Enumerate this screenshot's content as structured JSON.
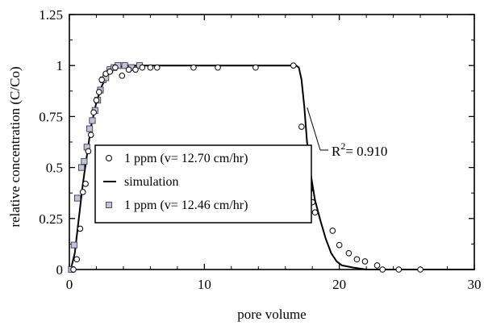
{
  "chart_data": {
    "type": "scatter",
    "title": "",
    "xlabel": "pore volume",
    "ylabel": "relative concentration (C/Co)",
    "xlim": [
      0,
      30
    ],
    "ylim": [
      0,
      1.25
    ],
    "x_ticks": [
      0,
      10,
      20,
      30
    ],
    "x_tick_labels": [
      "0",
      "10",
      "20",
      "30"
    ],
    "y_ticks": [
      0,
      0.25,
      0.5,
      0.75,
      1,
      1.25
    ],
    "y_tick_labels": [
      "0",
      "0.25",
      "0.5",
      "0.75",
      "1",
      "1.25"
    ],
    "grid": false,
    "legend_position": "center-left",
    "series": [
      {
        "name": "1 ppm (v= 12.70 cm/hr)",
        "marker": "open-circle",
        "color": "#000000",
        "x": [
          0.3,
          0.55,
          0.8,
          1.0,
          1.2,
          1.4,
          1.6,
          1.8,
          2.0,
          2.2,
          2.4,
          2.7,
          3.0,
          3.4,
          3.9,
          4.4,
          4.9,
          5.4,
          6.0,
          6.5,
          9.2,
          11.0,
          13.8,
          16.6,
          17.2,
          17.5,
          17.8,
          18.0,
          18.2,
          19.5,
          20.0,
          20.7,
          21.3,
          21.9,
          22.8,
          23.2,
          24.4,
          26.0
        ],
        "y": [
          0.0,
          0.05,
          0.2,
          0.38,
          0.42,
          0.58,
          0.66,
          0.77,
          0.83,
          0.87,
          0.93,
          0.96,
          0.97,
          0.99,
          0.95,
          0.98,
          0.98,
          0.99,
          0.99,
          0.99,
          0.99,
          0.99,
          0.99,
          1.0,
          0.7,
          0.49,
          0.39,
          0.33,
          0.28,
          0.19,
          0.12,
          0.08,
          0.05,
          0.04,
          0.02,
          0.0,
          0.0,
          0.0
        ]
      },
      {
        "name": "simulation",
        "marker": "line",
        "color": "#000000",
        "x": [
          0.1,
          0.4,
          0.7,
          1.0,
          1.3,
          1.6,
          2.0,
          2.4,
          2.8,
          3.2,
          3.6,
          4.0,
          5.0,
          10.0,
          15.0,
          16.8,
          17.0,
          17.2,
          17.4,
          17.6,
          17.9,
          18.2,
          18.6,
          19.0,
          19.4,
          19.8,
          20.2,
          21.0,
          22.0,
          23.0,
          30.0
        ],
        "y": [
          0.0,
          0.08,
          0.25,
          0.42,
          0.56,
          0.7,
          0.82,
          0.9,
          0.95,
          0.98,
          0.99,
          1.0,
          1.0,
          1.0,
          1.0,
          1.0,
          0.99,
          0.93,
          0.8,
          0.63,
          0.46,
          0.34,
          0.24,
          0.15,
          0.08,
          0.04,
          0.02,
          0.01,
          0.0,
          0.0,
          0.0
        ]
      },
      {
        "name": "1 ppm (v= 12.46 cm/hr)",
        "marker": "filled-square",
        "color": "#c3c3d6",
        "x": [
          0.15,
          0.35,
          0.6,
          0.9,
          1.1,
          1.3,
          1.5,
          1.7,
          1.9,
          2.1,
          2.3,
          2.5,
          2.7,
          3.0,
          3.3,
          3.6,
          4.1,
          4.6,
          5.2
        ],
        "y": [
          0.0,
          0.12,
          0.35,
          0.5,
          0.53,
          0.6,
          0.69,
          0.73,
          0.78,
          0.83,
          0.88,
          0.93,
          0.94,
          0.98,
          0.99,
          1.0,
          1.0,
          0.99,
          1.0
        ]
      }
    ],
    "annotations": [
      {
        "text": "R",
        "superscript": "2",
        "suffix": "= 0.910",
        "points_to_x": 17.5,
        "points_to_y": 0.79
      }
    ]
  }
}
